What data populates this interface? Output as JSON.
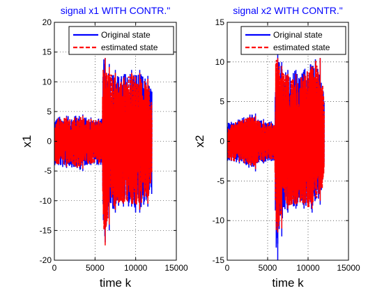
{
  "chart_data": [
    {
      "type": "line",
      "title": "signal x1 WITH CONTR.\"",
      "xlabel": "time k",
      "ylabel": "x1",
      "xlim": [
        0,
        15000
      ],
      "ylim": [
        -20,
        20
      ],
      "xticks": [
        "0",
        "5000",
        "10000",
        "15000"
      ],
      "yticks": [
        "-20",
        "-15",
        "-10",
        "-5",
        "0",
        "5",
        "10",
        "15",
        "20"
      ],
      "grid": true,
      "legend_position": "top-right",
      "series": [
        {
          "name": "Original state",
          "color": "#0000ff",
          "style": "solid",
          "envelope": [
            {
              "x": 0,
              "min": -4,
              "max": 4
            },
            {
              "x": 1000,
              "min": -4.5,
              "max": 4.3
            },
            {
              "x": 2000,
              "min": -4.3,
              "max": 4.2
            },
            {
              "x": 3000,
              "min": -5,
              "max": 4.5
            },
            {
              "x": 4000,
              "min": -4,
              "max": 4
            },
            {
              "x": 5000,
              "min": -4,
              "max": 3.8
            },
            {
              "x": 5900,
              "min": -4,
              "max": 3.8
            },
            {
              "x": 6000,
              "min": -17,
              "max": 14
            },
            {
              "x": 6500,
              "min": -15,
              "max": 13
            },
            {
              "x": 7000,
              "min": -12,
              "max": 12
            },
            {
              "x": 8000,
              "min": -11,
              "max": 11
            },
            {
              "x": 9000,
              "min": -11,
              "max": 12
            },
            {
              "x": 10000,
              "min": -12,
              "max": 12
            },
            {
              "x": 11000,
              "min": -11,
              "max": 11
            },
            {
              "x": 12000,
              "min": -9,
              "max": 9
            }
          ]
        },
        {
          "name": "estimated state",
          "color": "#ff0000",
          "style": "dashed",
          "envelope": [
            {
              "x": 0,
              "min": -3.8,
              "max": 3.9
            },
            {
              "x": 1000,
              "min": -4.3,
              "max": 4.1
            },
            {
              "x": 2000,
              "min": -4.1,
              "max": 4
            },
            {
              "x": 3000,
              "min": -4.6,
              "max": 4.3
            },
            {
              "x": 4000,
              "min": -3.8,
              "max": 3.8
            },
            {
              "x": 5000,
              "min": -3.8,
              "max": 3.6
            },
            {
              "x": 5900,
              "min": -3.8,
              "max": 3.6
            },
            {
              "x": 6000,
              "min": -17.5,
              "max": 14
            },
            {
              "x": 6500,
              "min": -14,
              "max": 12.5
            },
            {
              "x": 7000,
              "min": -11.5,
              "max": 11.5
            },
            {
              "x": 8000,
              "min": -10.5,
              "max": 10.5
            },
            {
              "x": 9000,
              "min": -10.5,
              "max": 11.5
            },
            {
              "x": 10000,
              "min": -11.5,
              "max": 11.5
            },
            {
              "x": 11000,
              "min": -10.5,
              "max": 10.5
            },
            {
              "x": 12000,
              "min": -8.5,
              "max": 8.5
            }
          ]
        }
      ]
    },
    {
      "type": "line",
      "title": "signal x2 WITH CONTR.\"",
      "xlabel": "time k",
      "ylabel": "x2",
      "xlim": [
        0,
        15000
      ],
      "ylim": [
        -15,
        15
      ],
      "xticks": [
        "0",
        "5000",
        "10000",
        "15000"
      ],
      "yticks": [
        "-15",
        "-10",
        "-5",
        "0",
        "5",
        "10",
        "15"
      ],
      "grid": true,
      "legend_position": "top-right",
      "series": [
        {
          "name": "Original state",
          "color": "#0000ff",
          "style": "solid",
          "envelope": [
            {
              "x": 0,
              "min": -2.5,
              "max": 2.3
            },
            {
              "x": 1000,
              "min": -2.8,
              "max": 2.6
            },
            {
              "x": 2000,
              "min": -2.9,
              "max": 3
            },
            {
              "x": 3000,
              "min": -3.8,
              "max": 3.5
            },
            {
              "x": 4000,
              "min": -2.8,
              "max": 2.8
            },
            {
              "x": 5000,
              "min": -2.5,
              "max": 2.5
            },
            {
              "x": 5900,
              "min": -2.5,
              "max": 2.5
            },
            {
              "x": 6000,
              "min": -15,
              "max": 11
            },
            {
              "x": 6500,
              "min": -12,
              "max": 10
            },
            {
              "x": 7000,
              "min": -9,
              "max": 9
            },
            {
              "x": 8000,
              "min": -8.5,
              "max": 9
            },
            {
              "x": 9000,
              "min": -8.5,
              "max": 9
            },
            {
              "x": 10000,
              "min": -9,
              "max": 9.5
            },
            {
              "x": 11000,
              "min": -8,
              "max": 10.5
            },
            {
              "x": 12000,
              "min": -6,
              "max": 7
            }
          ]
        },
        {
          "name": "estimated state",
          "color": "#ff0000",
          "style": "dashed",
          "envelope": [
            {
              "x": 0,
              "min": -2.3,
              "max": 2.1
            },
            {
              "x": 1000,
              "min": -2.6,
              "max": 2.4
            },
            {
              "x": 2000,
              "min": -2.7,
              "max": 2.8
            },
            {
              "x": 3000,
              "min": -3.5,
              "max": 3.2
            },
            {
              "x": 4000,
              "min": -2.6,
              "max": 2.6
            },
            {
              "x": 5000,
              "min": -2.3,
              "max": 2.3
            },
            {
              "x": 5900,
              "min": -2.3,
              "max": 2.3
            },
            {
              "x": 6000,
              "min": -11.5,
              "max": 10.5
            },
            {
              "x": 6500,
              "min": -11,
              "max": 9.5
            },
            {
              "x": 7000,
              "min": -8.5,
              "max": 8.5
            },
            {
              "x": 8000,
              "min": -8,
              "max": 8.5
            },
            {
              "x": 9000,
              "min": -8,
              "max": 8.5
            },
            {
              "x": 10000,
              "min": -8.5,
              "max": 9
            },
            {
              "x": 11000,
              "min": -7.5,
              "max": 10.5
            },
            {
              "x": 12000,
              "min": -5.5,
              "max": 6.5
            }
          ]
        }
      ]
    }
  ]
}
